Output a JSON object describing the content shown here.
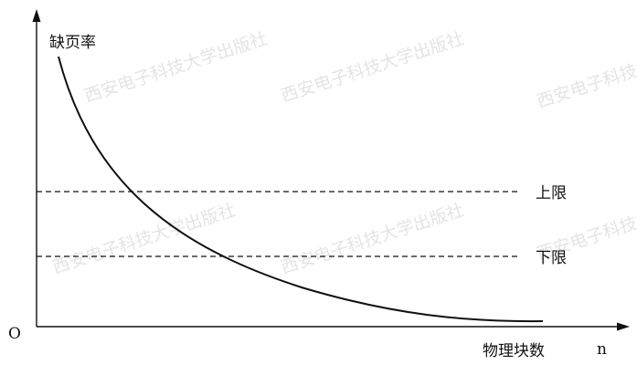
{
  "diagram": {
    "y_axis_label": "缺页率",
    "x_axis_label": "物理块数",
    "x_axis_symbol": "n",
    "origin_label": "O",
    "upper_limit_label": "上限",
    "lower_limit_label": "下限"
  },
  "watermark": {
    "text": "西安电子科技大学出版社"
  },
  "colors": {
    "line": "#111111",
    "watermark": "#d9d9d9",
    "background": "#ffffff"
  }
}
